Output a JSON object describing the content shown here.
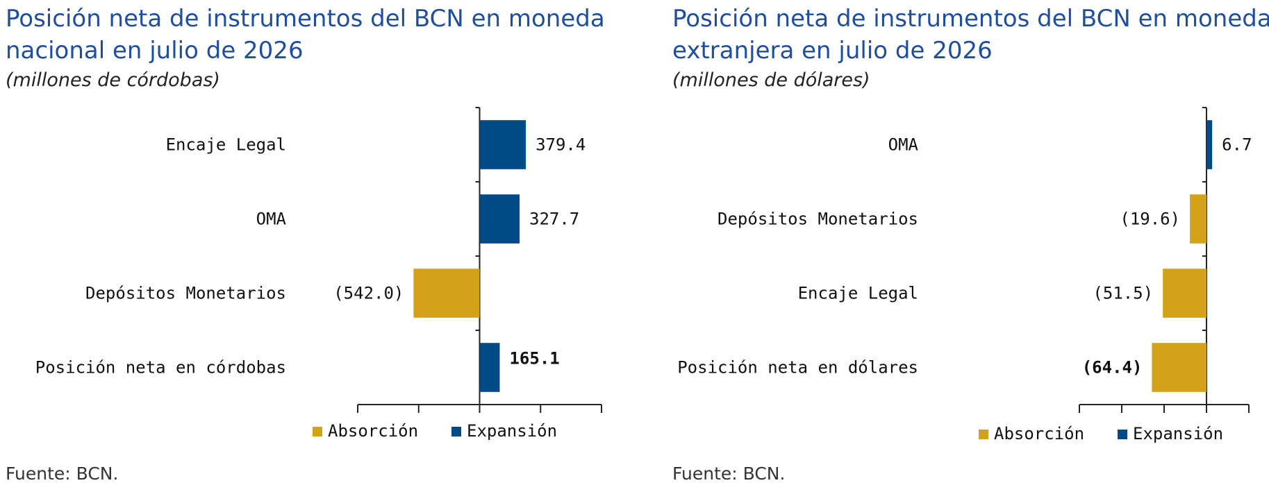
{
  "colors": {
    "expansion": "#004a87",
    "absorption": "#d4a21a",
    "title": "#1f4e9e"
  },
  "chart_data": [
    {
      "type": "bar",
      "orientation": "horizontal",
      "title": "Posición neta de instrumentos del BCN en moneda nacional en julio de 2026",
      "subtitle": "(millones de córdobas)",
      "categories": [
        "Encaje Legal",
        "OMA",
        "Depósitos Monetarios",
        "Posición neta en córdobas"
      ],
      "values": [
        379.4,
        327.7,
        -542.0,
        165.1
      ],
      "value_labels": [
        "379.4",
        "327.7",
        "(542.0)",
        "165.1"
      ],
      "bold_labels": [
        false,
        false,
        false,
        true
      ],
      "xlim": [
        -1000,
        1000
      ],
      "grid": false,
      "legend": {
        "placement": "bottom",
        "items": [
          {
            "name": "Absorción",
            "color": "#d4a21a"
          },
          {
            "name": "Expansión",
            "color": "#004a87"
          }
        ]
      },
      "source": "Fuente: BCN."
    },
    {
      "type": "bar",
      "orientation": "horizontal",
      "title": "Posición neta de instrumentos del BCN en moneda extranjera en julio de 2026",
      "subtitle": "(millones de dólares)",
      "categories": [
        "OMA",
        "Depósitos Monetarios",
        "Encaje Legal",
        "Posición neta en dólares"
      ],
      "values": [
        6.7,
        -19.6,
        -51.5,
        -64.4
      ],
      "value_labels": [
        "6.7",
        "(19.6)",
        "(51.5)",
        "(64.4)"
      ],
      "bold_labels": [
        false,
        false,
        false,
        true
      ],
      "xlim": [
        -150,
        50
      ],
      "grid": false,
      "legend": {
        "placement": "bottom",
        "items": [
          {
            "name": "Absorción",
            "color": "#d4a21a"
          },
          {
            "name": "Expansión",
            "color": "#004a87"
          }
        ]
      },
      "source": "Fuente: BCN."
    }
  ]
}
